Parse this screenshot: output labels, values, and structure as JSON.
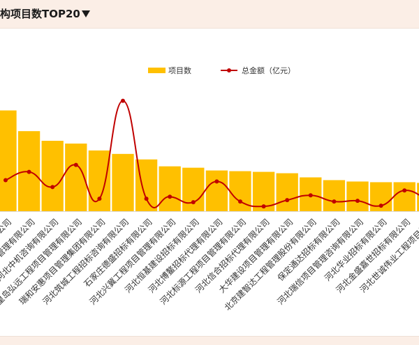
{
  "header": {
    "title": "构项目数TOP20",
    "dropdown_icon": "triangle-down-icon"
  },
  "colors": {
    "bar": "#ffc000",
    "line": "#c00000",
    "header_bg": "#fbeee6"
  },
  "chart_data": {
    "type": "bar",
    "title": "",
    "xlabel": "",
    "ylabel": "",
    "grid": false,
    "legend_position": "top",
    "legend": [
      "项目数",
      "总金额（亿元）"
    ],
    "categories": [
      "...有限公司",
      "...项目管理有限公司",
      "河北中机咨询有限公司",
      "秦皇岛弘远工程项目管理有限公司",
      "瑞和安惠项目管理集团有限公司",
      "河北筑城工程招标咨询有限公司",
      "石家庄德盛招标有限公司",
      "河北兴冀工程项目管理有限公司",
      "河北恒基建设招标有限公司",
      "河北博鳌招标代理有限公司",
      "河北标源工程项目管理有限公司",
      "河北信合招标代理有限公司",
      "大华建设项目管理有限公司",
      "北京建智达工程管理股份有限公司",
      "保定通达招标有限公司",
      "河北瑞信项目管理咨询有限公司",
      "河北华业招标有限公司",
      "河北金盛嘉世招标有限公司",
      "河北世诚伟业工程项目管..."
    ],
    "series": [
      {
        "name": "项目数",
        "kind": "bar",
        "values": [
          146,
          116,
          102,
          98,
          88,
          83,
          75,
          65,
          63,
          59,
          58,
          57,
          55,
          49,
          45,
          43,
          42,
          42,
          41
        ]
      },
      {
        "name": "总金额（亿元）",
        "kind": "line",
        "values": [
          45,
          57,
          35,
          67,
          18,
          160,
          18,
          21,
          13,
          43,
          14,
          7,
          16,
          23,
          14,
          15,
          8,
          30,
          15
        ]
      }
    ],
    "ylim_bar": [
      0,
      200
    ],
    "ylim_line": [
      0,
      200
    ]
  }
}
